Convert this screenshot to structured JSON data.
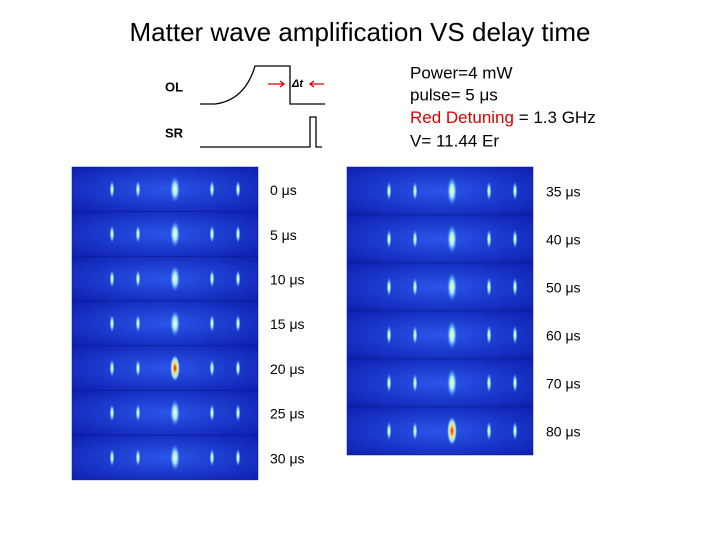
{
  "title": "Matter wave amplification VS delay time",
  "timing": {
    "ol": "OL",
    "sr": "SR",
    "delta": "Δt"
  },
  "parameters": {
    "power": "Power=4 mW",
    "pulse": "pulse= 5 μs",
    "detuning_label": "Red Detuning",
    "detuning_value": " = 1.3 GHz",
    "depth": "V= 11.44 Er"
  },
  "left_panels": [
    "0 μs",
    "5 μs",
    "10 μs",
    "15 μs",
    "20 μs",
    "25 μs",
    "30 μs"
  ],
  "right_panels": [
    "35 μs",
    "40 μs",
    "50 μs",
    "60 μs",
    "70 μs",
    "80 μs"
  ]
}
